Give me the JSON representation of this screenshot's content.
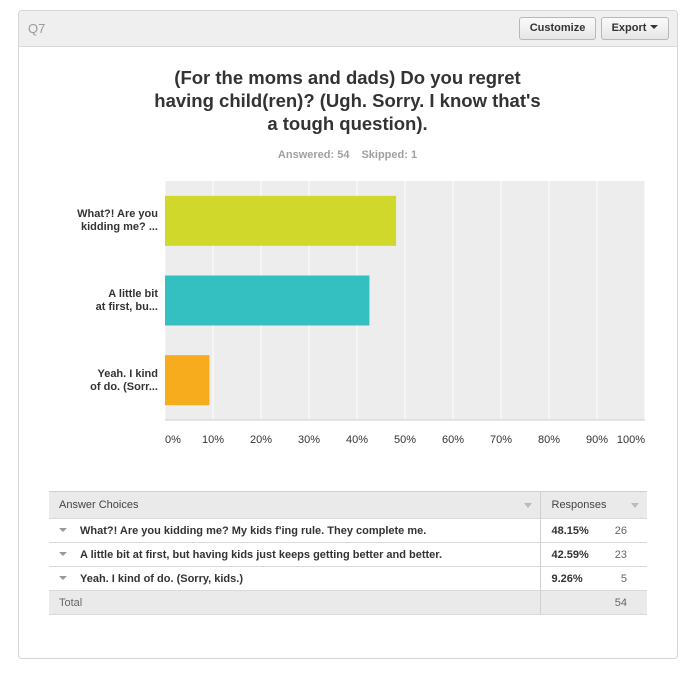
{
  "header": {
    "question_id": "Q7",
    "customize_label": "Customize",
    "export_label": "Export"
  },
  "question": {
    "title_lines": [
      "(For the moms and dads) Do you regret",
      "having child(ren)? (Ugh. Sorry. I know that's",
      "a tough question)."
    ],
    "answered_text": "Answered: 54",
    "skipped_text": "Skipped: 1"
  },
  "colors": {
    "bar1": "#cfd82b",
    "bar2": "#34bfc1",
    "bar3": "#f7ac1e",
    "plot_bg": "#ededed",
    "grid": "#ffffff"
  },
  "chart_data": {
    "type": "bar",
    "orientation": "horizontal",
    "categories": [
      [
        "What?! Are you",
        "kidding me? ..."
      ],
      [
        "A little bit",
        "at first, bu..."
      ],
      [
        "Yeah. I kind",
        "of do. (Sorr..."
      ]
    ],
    "values": [
      48.15,
      42.59,
      9.26
    ],
    "xlim": [
      0,
      100
    ],
    "x_ticks": [
      "0%",
      "10%",
      "20%",
      "30%",
      "40%",
      "50%",
      "60%",
      "70%",
      "80%",
      "90%",
      "100%"
    ],
    "grid": true
  },
  "table": {
    "headers": {
      "answer": "Answer Choices",
      "responses": "Responses"
    },
    "rows": [
      {
        "answer": "What?! Are you kidding me? My kids f'ing rule. They complete me.",
        "percent": "48.15%",
        "count": "26"
      },
      {
        "answer": "A little bit at first, but having kids just keeps getting better and better.",
        "percent": "42.59%",
        "count": "23"
      },
      {
        "answer": "Yeah. I kind of do. (Sorry, kids.)",
        "percent": "9.26%",
        "count": "5"
      }
    ],
    "total_label": "Total",
    "total_count": "54"
  }
}
